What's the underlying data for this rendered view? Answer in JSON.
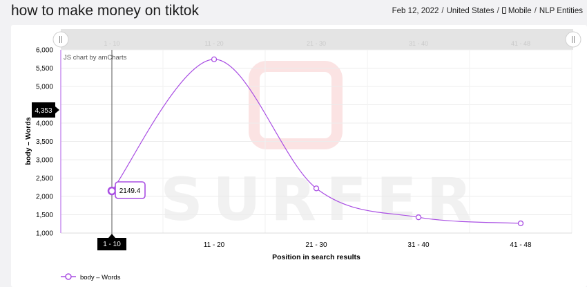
{
  "header": {
    "title": "how to make money on tiktok",
    "date": "Feb 12, 2022",
    "country": "United States",
    "device": "Mobile",
    "mode": "NLP Entities"
  },
  "chart_data": {
    "type": "line",
    "categories": [
      "1 - 10",
      "11 - 20",
      "21 - 30",
      "31 - 40",
      "41 - 48"
    ],
    "series": [
      {
        "name": "body – Words",
        "values": [
          2149.4,
          5740,
          2220,
          1430,
          1265
        ]
      }
    ],
    "xlabel": "Position in search results",
    "ylabel": "body – Words",
    "ylim": [
      1000,
      6000
    ],
    "yticks": [
      1000,
      1500,
      2000,
      2500,
      3000,
      3500,
      4000,
      4500,
      5000,
      5500,
      6000
    ],
    "ytick_labels": [
      "1,000",
      "1,500",
      "2,000",
      "2,500",
      "3,000",
      "3,500",
      "4,000",
      "4,500",
      "5,000",
      "5,500",
      "6,000"
    ],
    "cursor": {
      "category": "1 - 10",
      "value_label": "2149.4",
      "y_readout": "4,353"
    },
    "credit": "JS chart by amCharts",
    "watermark": "SURFER",
    "legend_position": "bottom-left",
    "grid": true,
    "colors": {
      "series": "#a94ee3"
    }
  }
}
